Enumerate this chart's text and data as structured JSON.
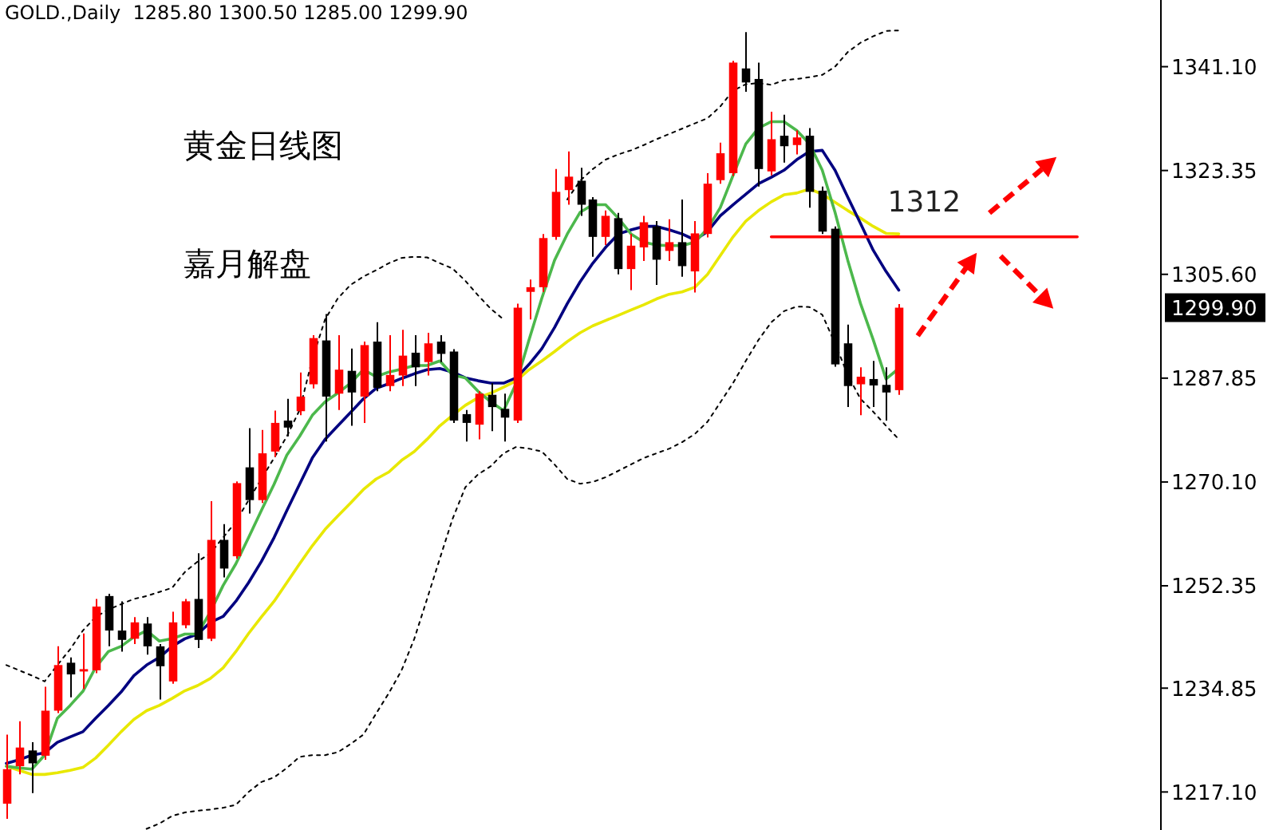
{
  "chart_data": {
    "type": "candlestick",
    "title": "黄金日线图",
    "subtitle": "GOLD.,Daily  1285.80 1300.50 1285.00 1299.90",
    "categories": [
      null,
      null,
      null,
      null,
      null,
      null,
      null,
      null,
      null,
      null,
      null,
      null,
      null,
      null,
      null,
      null,
      null,
      null,
      null,
      null,
      null,
      null,
      null,
      null,
      null,
      null,
      null,
      null,
      null,
      null,
      null,
      null,
      null,
      null,
      null,
      null,
      null,
      null,
      null,
      null,
      null,
      null,
      null,
      null,
      null,
      null,
      null,
      null,
      null,
      null,
      null,
      null,
      null,
      null,
      null,
      null,
      null,
      null,
      null,
      null,
      null,
      null,
      null,
      null,
      null,
      null,
      null,
      null,
      null,
      null,
      null,
      null,
      null,
      null,
      null,
      null,
      null,
      null,
      null,
      null,
      null,
      null,
      null,
      null,
      null,
      null,
      null,
      null,
      null,
      null,
      null
    ],
    "ohlc": [
      [
        1215.1,
        1226.9,
        1212.5,
        1221.0
      ],
      [
        1221.5,
        1229.2,
        1220.1,
        1224.7
      ],
      [
        1224.2,
        1225.6,
        1216.9,
        1222.0
      ],
      [
        1223.3,
        1235.1,
        1222.6,
        1231.0
      ],
      [
        1231.0,
        1242.0,
        1230.6,
        1238.8
      ],
      [
        1239.2,
        1240.1,
        1233.3,
        1237.2
      ],
      [
        1237.7,
        1244.2,
        1234.7,
        1238.1
      ],
      [
        1237.9,
        1250.1,
        1237.4,
        1248.8
      ],
      [
        1250.6,
        1251.0,
        1242.0,
        1244.7
      ],
      [
        1244.7,
        1249.7,
        1241.1,
        1243.1
      ],
      [
        1243.3,
        1247.0,
        1242.4,
        1246.1
      ],
      [
        1245.9,
        1247.0,
        1240.6,
        1242.0
      ],
      [
        1242.0,
        1242.4,
        1232.9,
        1238.6
      ],
      [
        1236.0,
        1247.9,
        1235.6,
        1246.1
      ],
      [
        1245.6,
        1250.1,
        1245.1,
        1249.7
      ],
      [
        1250.1,
        1257.9,
        1241.7,
        1243.1
      ],
      [
        1243.3,
        1266.8,
        1242.9,
        1260.2
      ],
      [
        1260.2,
        1262.9,
        1253.8,
        1255.3
      ],
      [
        1257.4,
        1270.2,
        1257.0,
        1269.9
      ],
      [
        1272.6,
        1279.3,
        1264.7,
        1267.0
      ],
      [
        1267.0,
        1279.0,
        1266.5,
        1275.0
      ],
      [
        1275.3,
        1282.3,
        1274.4,
        1280.2
      ],
      [
        1280.6,
        1284.3,
        1277.9,
        1279.4
      ],
      [
        1282.2,
        1288.8,
        1281.5,
        1284.7
      ],
      [
        1286.8,
        1295.2,
        1286.1,
        1294.7
      ],
      [
        1294.3,
        1298.8,
        1277.0,
        1284.7
      ],
      [
        1285.2,
        1295.2,
        1282.4,
        1289.3
      ],
      [
        1289.1,
        1292.9,
        1279.7,
        1285.4
      ],
      [
        1284.7,
        1294.1,
        1280.2,
        1293.5
      ],
      [
        1294.1,
        1297.4,
        1285.6,
        1286.2
      ],
      [
        1286.5,
        1295.2,
        1285.6,
        1288.4
      ],
      [
        1288.3,
        1296.1,
        1286.5,
        1291.7
      ],
      [
        1292.2,
        1295.2,
        1286.5,
        1289.7
      ],
      [
        1290.6,
        1295.6,
        1288.3,
        1293.8
      ],
      [
        1294.1,
        1295.2,
        1290.6,
        1292.0
      ],
      [
        1292.4,
        1292.8,
        1280.2,
        1280.6
      ],
      [
        1281.7,
        1282.4,
        1277.0,
        1280.2
      ],
      [
        1279.9,
        1285.6,
        1277.4,
        1285.2
      ],
      [
        1285.0,
        1287.0,
        1278.8,
        1282.9
      ],
      [
        1282.6,
        1285.2,
        1277.0,
        1281.1
      ],
      [
        1280.6,
        1300.6,
        1280.2,
        1299.9
      ],
      [
        1302.6,
        1304.7,
        1297.9,
        1303.4
      ],
      [
        1303.4,
        1312.5,
        1302.6,
        1311.8
      ],
      [
        1312.0,
        1323.6,
        1311.5,
        1319.7
      ],
      [
        1320.0,
        1326.6,
        1317.5,
        1322.3
      ],
      [
        1321.6,
        1323.8,
        1315.6,
        1317.5
      ],
      [
        1318.4,
        1318.8,
        1308.6,
        1312.0
      ],
      [
        1312.0,
        1316.5,
        1310.6,
        1315.6
      ],
      [
        1315.2,
        1316.1,
        1305.6,
        1306.5
      ],
      [
        1306.5,
        1312.5,
        1302.9,
        1310.5
      ],
      [
        1310.2,
        1315.6,
        1307.9,
        1314.5
      ],
      [
        1313.8,
        1314.7,
        1303.8,
        1308.1
      ],
      [
        1309.6,
        1315.0,
        1307.9,
        1311.1
      ],
      [
        1311.1,
        1318.4,
        1305.2,
        1307.0
      ],
      [
        1306.1,
        1314.7,
        1302.5,
        1312.6
      ],
      [
        1312.5,
        1322.9,
        1311.9,
        1321.1
      ],
      [
        1321.7,
        1328.1,
        1321.1,
        1326.3
      ],
      [
        1322.9,
        1342.1,
        1322.4,
        1341.8
      ],
      [
        1340.8,
        1347.0,
        1336.8,
        1338.4
      ],
      [
        1339.0,
        1341.8,
        1320.6,
        1323.6
      ],
      [
        1323.2,
        1333.4,
        1322.5,
        1328.7
      ],
      [
        1329.3,
        1332.9,
        1324.7,
        1327.5
      ],
      [
        1327.7,
        1330.2,
        1326.1,
        1329.0
      ],
      [
        1329.3,
        1330.6,
        1317.0,
        1319.7
      ],
      [
        1319.9,
        1320.6,
        1312.5,
        1312.9
      ],
      [
        1313.4,
        1313.8,
        1289.8,
        1290.2
      ],
      [
        1293.8,
        1297.0,
        1282.9,
        1286.5
      ],
      [
        1286.8,
        1289.7,
        1281.5,
        1288.1
      ],
      [
        1287.7,
        1290.8,
        1282.9,
        1286.6
      ],
      [
        1286.7,
        1289.7,
        1280.6,
        1285.4
      ],
      [
        1285.8,
        1300.5,
        1285.0,
        1299.9
      ],
      null,
      null,
      null,
      null,
      null,
      null,
      null,
      null,
      null,
      null,
      null,
      null,
      null,
      null,
      null,
      null,
      null,
      null,
      null,
      null
    ],
    "colors": [
      "#ff0000",
      "#ff0000",
      "#000000",
      "#ff0000",
      "#ff0000",
      "#000000",
      "#ff0000",
      "#ff0000",
      "#000000",
      "#000000",
      "#ff0000",
      "#000000",
      "#000000",
      "#ff0000",
      "#ff0000",
      "#000000",
      "#ff0000",
      "#000000",
      "#ff0000",
      "#000000",
      "#ff0000",
      "#ff0000",
      "#000000",
      "#ff0000",
      "#ff0000",
      "#000000",
      "#ff0000",
      "#000000",
      "#ff0000",
      "#000000",
      "#ff0000",
      "#ff0000",
      "#000000",
      "#ff0000",
      "#000000",
      "#000000",
      "#000000",
      "#ff0000",
      "#000000",
      "#000000",
      "#ff0000",
      "#ff0000",
      "#ff0000",
      "#ff0000",
      "#ff0000",
      "#000000",
      "#000000",
      "#ff0000",
      "#000000",
      "#ff0000",
      "#ff0000",
      "#000000",
      "#ff0000",
      "#000000",
      "#ff0000",
      "#ff0000",
      "#ff0000",
      "#ff0000",
      "#000000",
      "#000000",
      "#ff0000",
      "#000000",
      "#ff0000",
      "#000000",
      "#000000",
      "#000000",
      "#000000",
      "#ff0000",
      "#000000",
      "#000000",
      "#ff0000",
      null,
      null,
      null,
      null,
      null,
      null,
      null,
      null,
      null,
      null,
      null,
      null,
      null,
      null,
      null,
      null,
      null,
      null,
      null,
      null
    ],
    "series": [
      {
        "type": "line",
        "line_style": "dotted",
        "color": "#000000",
        "values": [
          1238.8,
          1237.9,
          1237.0,
          1236.0,
          1238.8,
          1241.5,
          1244.7,
          1247.0,
          1248.3,
          1249.2,
          1250.1,
          1250.6,
          1251.3,
          1252.0,
          1254.7,
          1256.5,
          1257.9,
          1260.6,
          1263.3,
          1267.0,
          1270.6,
          1274.2,
          1277.9,
          1282.4,
          1291.1,
          1297.9,
          1301.5,
          1303.8,
          1305.2,
          1306.3,
          1307.5,
          1308.4,
          1308.6,
          1308.5,
          1307.5,
          1306.6,
          1304.5,
          1302.0,
          1299.7,
          1297.9,
          null,
          null,
          null,
          null,
          1318.4,
          1321.6,
          1323.6,
          1325.2,
          1326.1,
          1326.8,
          1327.7,
          1328.7,
          1329.6,
          1330.5,
          1331.4,
          1332.3,
          1334.3,
          1337.0,
          1338.1,
          1338.3,
          1338.0,
          1338.8,
          1339.0,
          1339.3,
          1339.7,
          1341.1,
          1343.6,
          1345.2,
          1346.3,
          1347.2,
          1347.3,
          null,
          null,
          null,
          null,
          null,
          null,
          null,
          null,
          null,
          null,
          null,
          null,
          null,
          null,
          null,
          null,
          null,
          null,
          null,
          null
        ]
      },
      {
        "type": "line",
        "line_style": "dotted",
        "color": "#000000",
        "values": [
          null,
          null,
          null,
          null,
          null,
          null,
          null,
          null,
          null,
          null,
          null,
          1210.8,
          1211.7,
          1213.0,
          1213.6,
          1213.9,
          1214.1,
          1214.4,
          1214.9,
          1217.1,
          1218.8,
          1219.6,
          1221.2,
          1223.1,
          1223.4,
          1223.4,
          1223.9,
          1225.3,
          1226.9,
          1230.5,
          1234.0,
          1237.9,
          1243.3,
          1250.1,
          1257.0,
          1263.8,
          1269.2,
          1271.4,
          1272.8,
          1275.0,
          1276.1,
          1275.8,
          1275.3,
          1273.1,
          1270.6,
          1269.8,
          1270.1,
          1270.9,
          1272.0,
          1273.1,
          1274.2,
          1275.0,
          1275.8,
          1276.9,
          1278.3,
          1280.4,
          1283.7,
          1287.0,
          1290.8,
          1294.4,
          1297.4,
          1299.3,
          1300.1,
          1300.0,
          1298.7,
          1293.8,
          1288.4,
          1284.3,
          1282.1,
          1279.7,
          1277.4,
          null,
          null,
          null,
          null,
          null,
          null,
          null,
          null,
          null,
          null,
          null,
          null,
          null,
          null,
          null,
          null,
          null,
          null,
          null,
          null
        ]
      },
      {
        "type": "line",
        "color": "#e8e800",
        "values": [
          1221.5,
          1220.8,
          1220.1,
          1220.1,
          1220.4,
          1220.8,
          1221.3,
          1222.9,
          1225.1,
          1227.4,
          1229.5,
          1231.0,
          1231.9,
          1233.1,
          1234.4,
          1235.3,
          1236.5,
          1238.3,
          1241.1,
          1244.2,
          1247.0,
          1249.7,
          1252.9,
          1256.1,
          1259.2,
          1262.0,
          1264.3,
          1266.5,
          1268.8,
          1270.6,
          1271.8,
          1273.8,
          1275.3,
          1277.4,
          1279.7,
          1281.5,
          1283.2,
          1284.5,
          1285.3,
          1286.3,
          1287.4,
          1289.3,
          1290.8,
          1292.4,
          1294.1,
          1295.6,
          1296.8,
          1297.7,
          1298.6,
          1299.5,
          1300.4,
          1301.4,
          1302.2,
          1302.6,
          1303.4,
          1305.6,
          1308.8,
          1312.0,
          1314.7,
          1316.5,
          1318.0,
          1319.2,
          1319.5,
          1320.2,
          1319.3,
          1317.9,
          1316.5,
          1315.2,
          1313.8,
          1312.6,
          1312.5,
          null,
          null,
          null,
          null,
          null,
          null,
          null,
          null,
          null,
          null,
          null,
          null,
          null,
          null,
          null,
          null,
          null,
          null,
          null,
          null
        ]
      },
      {
        "type": "line",
        "color": "#000080",
        "values": [
          1222.0,
          1222.6,
          1223.4,
          1223.8,
          1225.6,
          1226.5,
          1227.4,
          1229.7,
          1231.9,
          1234.2,
          1237.0,
          1238.8,
          1240.1,
          1242.0,
          1243.3,
          1244.1,
          1246.1,
          1247.1,
          1249.7,
          1252.9,
          1256.5,
          1260.6,
          1265.2,
          1269.7,
          1274.2,
          1277.4,
          1279.7,
          1282.0,
          1284.3,
          1286.1,
          1286.9,
          1287.8,
          1288.6,
          1289.3,
          1289.5,
          1288.9,
          1287.9,
          1287.4,
          1287.0,
          1287.0,
          1287.9,
          1290.2,
          1292.9,
          1296.5,
          1300.6,
          1304.3,
          1307.5,
          1310.2,
          1312.5,
          1313.2,
          1313.8,
          1313.8,
          1313.2,
          1312.5,
          1311.5,
          1312.9,
          1315.6,
          1317.5,
          1319.3,
          1321.1,
          1322.2,
          1323.4,
          1325.2,
          1326.6,
          1326.8,
          1323.4,
          1318.8,
          1314.3,
          1309.7,
          1306.1,
          1302.9,
          null,
          null,
          null,
          null,
          null,
          null,
          null,
          null,
          null,
          null,
          null,
          null,
          null,
          null,
          null,
          null,
          null,
          null,
          null,
          null
        ]
      },
      {
        "type": "line",
        "color": "#4cb84c",
        "values": [
          1221.5,
          1221.2,
          1221.0,
          1223.4,
          1229.7,
          1231.9,
          1234.3,
          1238.4,
          1241.1,
          1242.0,
          1243.6,
          1244.7,
          1242.9,
          1243.3,
          1244.1,
          1244.1,
          1247.9,
          1252.4,
          1256.1,
          1260.6,
          1265.2,
          1269.7,
          1274.7,
          1277.9,
          1281.5,
          1283.8,
          1285.3,
          1287.0,
          1289.3,
          1288.1,
          1288.9,
          1289.4,
          1290.0,
          1290.0,
          1290.8,
          1288.4,
          1287.9,
          1285.6,
          1283.8,
          1282.3,
          1287.0,
          1294.4,
          1301.5,
          1308.0,
          1312.5,
          1316.2,
          1317.5,
          1317.5,
          1315.2,
          1312.5,
          1311.1,
          1310.6,
          1310.5,
          1310.5,
          1311.1,
          1313.4,
          1317.0,
          1322.5,
          1327.9,
          1330.6,
          1331.7,
          1331.7,
          1330.2,
          1327.9,
          1323.4,
          1316.2,
          1308.0,
          1300.6,
          1294.4,
          1287.7,
          1289.5,
          null,
          null,
          null,
          null,
          null,
          null,
          null,
          null,
          null,
          null,
          null,
          null,
          null,
          null,
          null,
          null,
          null,
          null,
          null,
          null
        ]
      },
      {
        "type": "line",
        "name": "1312",
        "color": "#ff0000",
        "values": [
          null,
          null,
          null,
          null,
          null,
          null,
          null,
          null,
          null,
          null,
          null,
          null,
          null,
          null,
          null,
          null,
          null,
          null,
          null,
          null,
          null,
          null,
          null,
          null,
          null,
          null,
          null,
          null,
          null,
          null,
          null,
          null,
          null,
          null,
          null,
          null,
          null,
          null,
          null,
          null,
          null,
          null,
          null,
          null,
          null,
          null,
          null,
          null,
          null,
          null,
          null,
          null,
          null,
          null,
          null,
          null,
          null,
          null,
          null,
          null,
          1312,
          1312,
          1312,
          1312,
          1312,
          1312,
          1312,
          1312,
          1312,
          1312,
          1312,
          1312,
          1312,
          1312,
          1312,
          1312,
          1312,
          1312,
          1312,
          1312,
          1312,
          1312,
          1312,
          1312,
          1312,
          null,
          null,
          null,
          null,
          null,
          null
        ]
      }
    ],
    "ylim": [
      1210.6,
      1352.5
    ],
    "yticks": [
      {
        "value": 1341.1,
        "label": "1341.10"
      },
      {
        "value": 1323.35,
        "label": "1323.35"
      },
      {
        "value": 1305.6,
        "label": "1305.60"
      },
      {
        "value": 1299.9,
        "label": "1299.90"
      },
      {
        "value": 1287.85,
        "label": "1287.85"
      },
      {
        "value": 1270.1,
        "label": "1270.10"
      },
      {
        "value": 1252.35,
        "label": "1252.35"
      },
      {
        "value": 1234.85,
        "label": "1234.85"
      },
      {
        "value": 1217.1,
        "label": "1217.10"
      }
    ],
    "tick_labels": "y",
    "annotations": [
      "嘉月解盘"
    ]
  }
}
